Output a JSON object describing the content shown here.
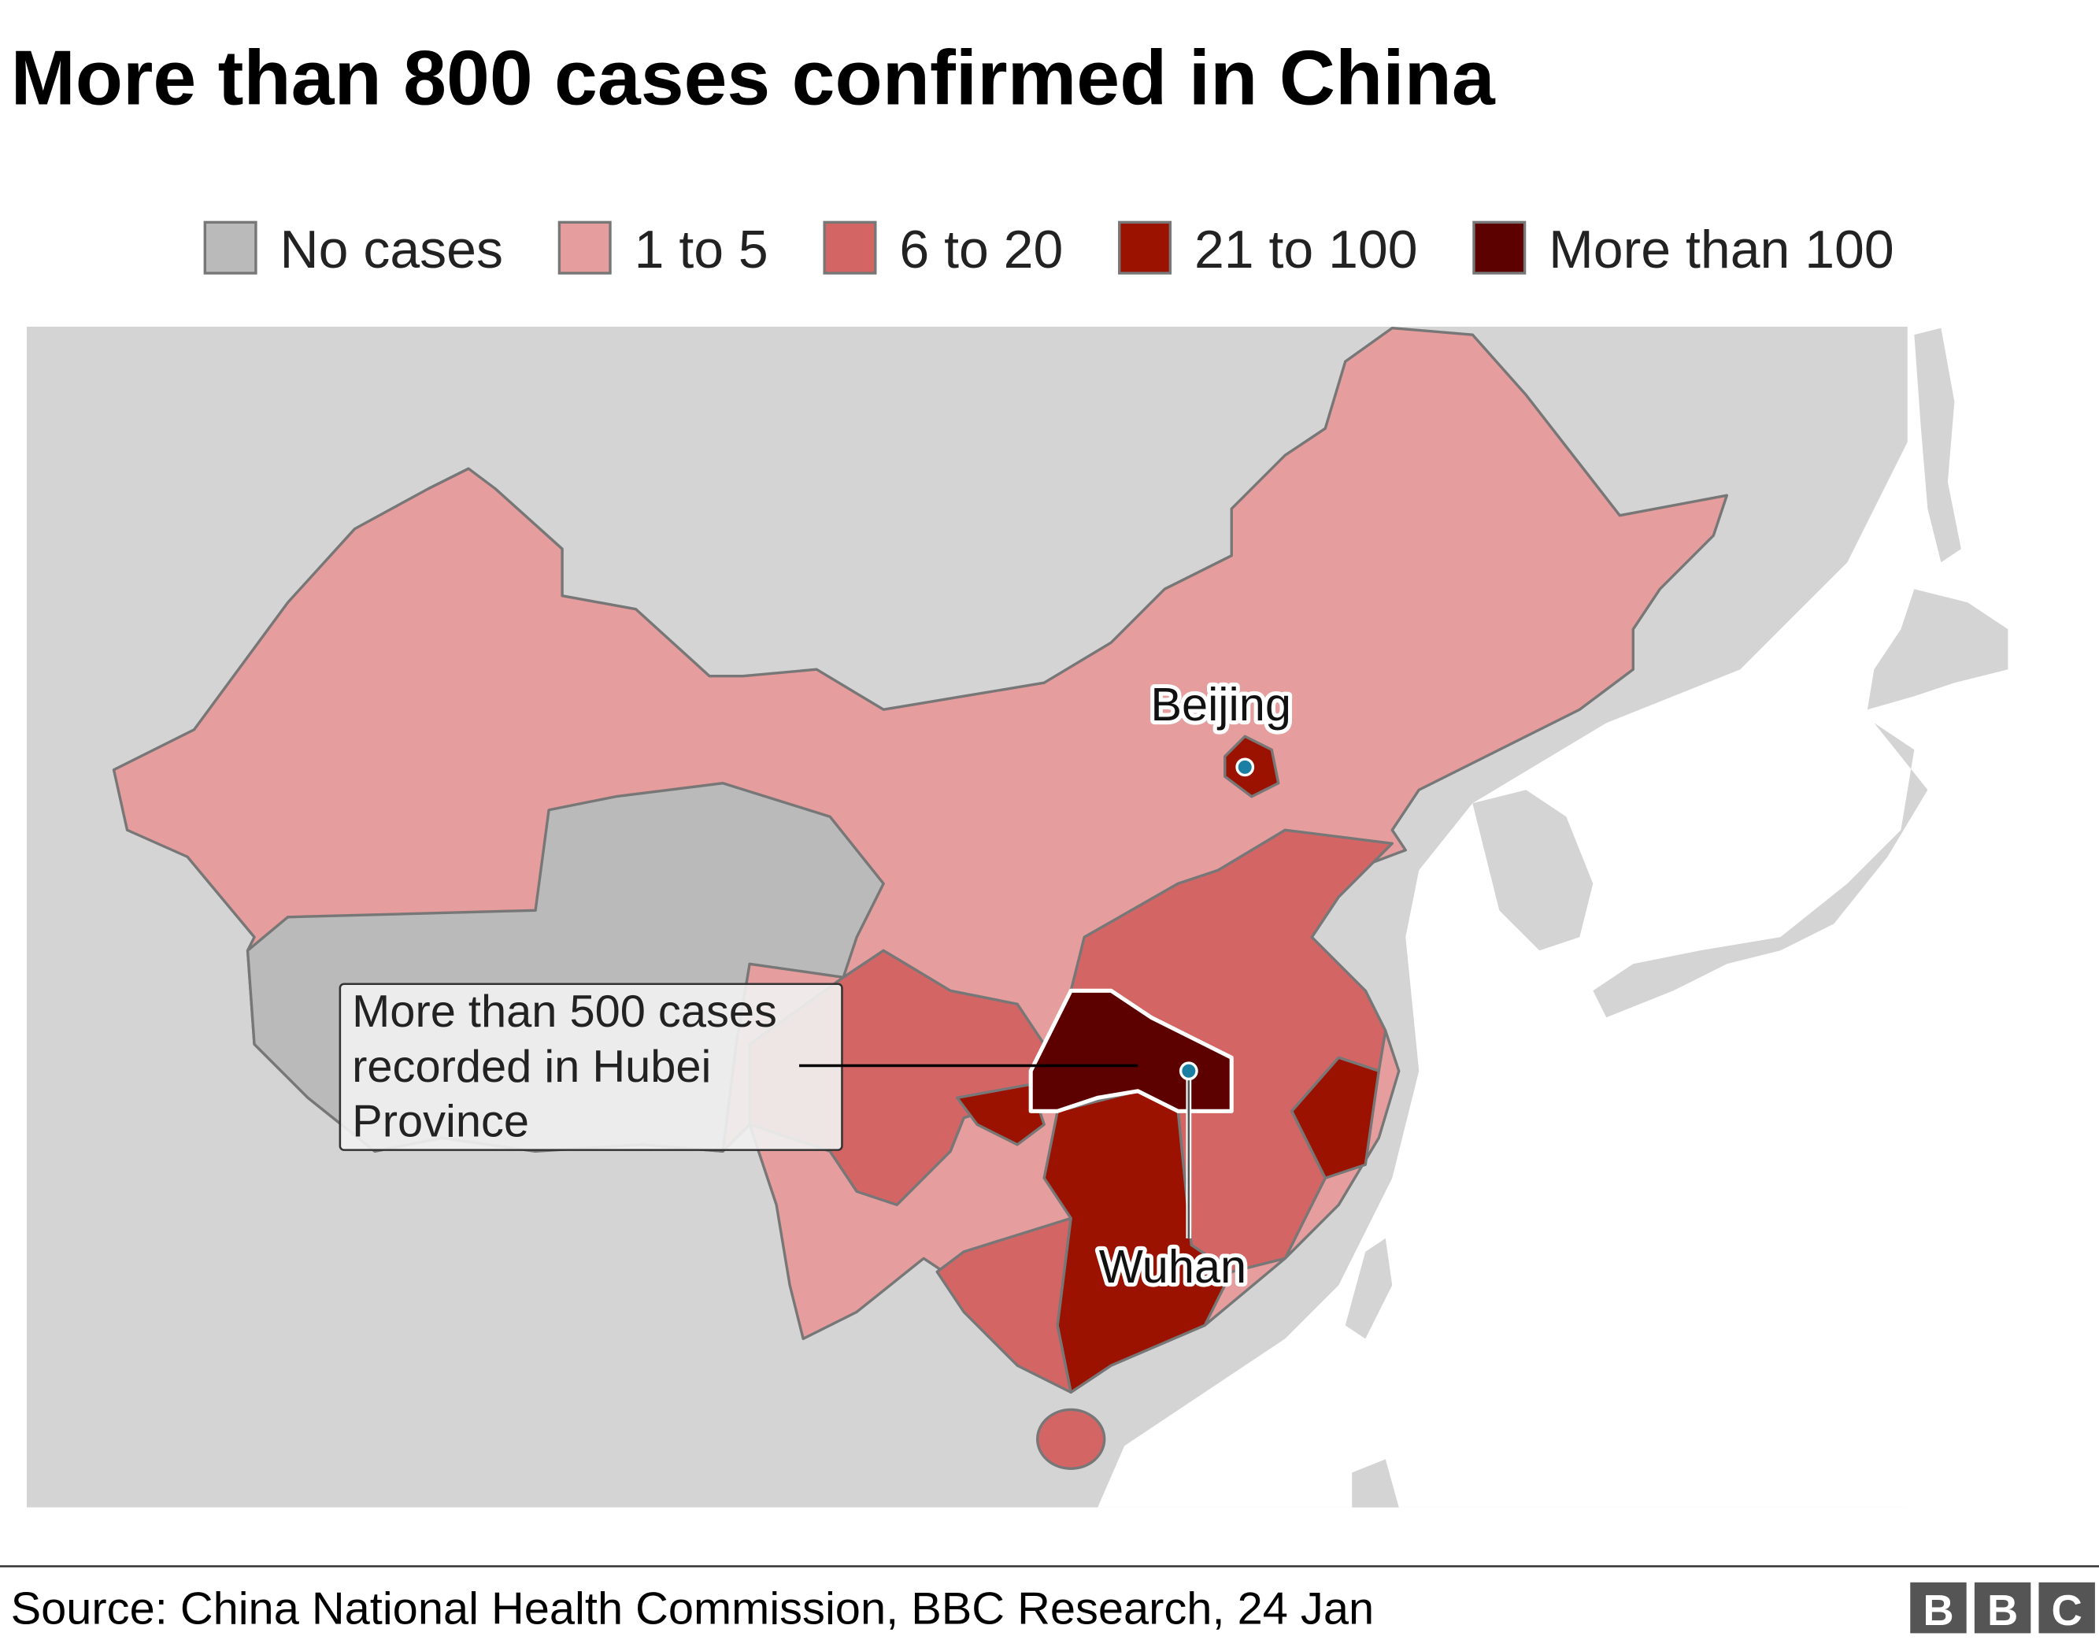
{
  "header": {
    "title": "More than 800 cases confirmed in China"
  },
  "legend": [
    {
      "label": "No cases",
      "color": "#bababa"
    },
    {
      "label": "1 to 5",
      "color": "#e69d9d"
    },
    {
      "label": "6 to 20",
      "color": "#d46565"
    },
    {
      "label": "21 to 100",
      "color": "#9b1200"
    },
    {
      "label": "More than 100",
      "color": "#5c0000"
    }
  ],
  "map": {
    "labels": {
      "beijing": "Beijing",
      "wuhan": "Wuhan"
    },
    "annotation": [
      "More than 500 cases",
      "recorded in Hubei",
      "Province"
    ]
  },
  "footer": {
    "source": "Source: China National Health Commission, BBC Research, 24 Jan",
    "logo": [
      "B",
      "B",
      "C"
    ]
  }
}
